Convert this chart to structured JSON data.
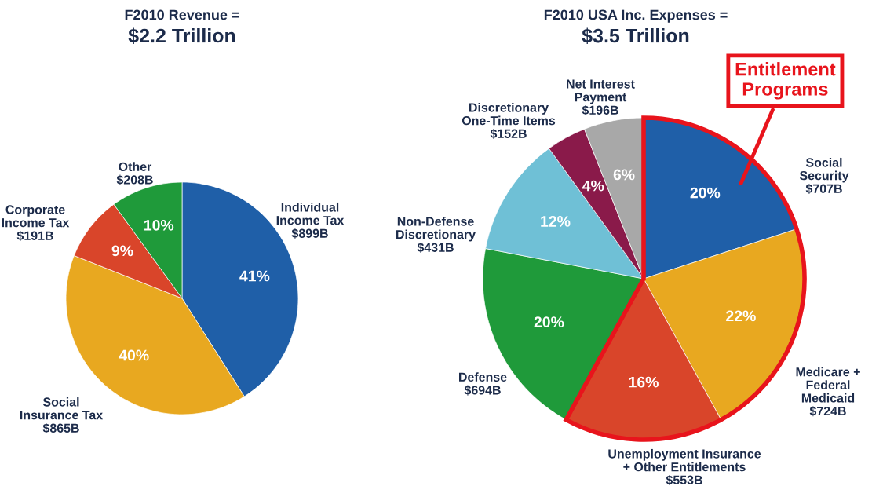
{
  "chart_data": [
    {
      "type": "pie",
      "title": "F2010 Revenue =",
      "subtitle": "$2.2 Trillion",
      "categories": [
        "Individual\nIncome Tax\n$899B",
        "Social\nInsurance Tax\n$865B",
        "Corporate\nIncome Tax\n$191B",
        "Other\n$208B"
      ],
      "values": [
        41,
        40,
        9,
        10
      ],
      "value_labels": [
        "41%",
        "40%",
        "9%",
        "10%"
      ],
      "colors": [
        "#1f5fa8",
        "#e8a820",
        "#d9452a",
        "#1f9a3a"
      ]
    },
    {
      "type": "pie",
      "title": "F2010 USA Inc. Expenses =",
      "subtitle": "$3.5 Trillion",
      "categories": [
        "Social\nSecurity\n$707B",
        "Medicare +\nFederal\nMedicaid\n$724B",
        "Unemployment Insurance\n+ Other Entitlements\n$553B",
        "Defense\n$694B",
        "Non-Defense\nDiscretionary\n$431B",
        "Discretionary\nOne-Time Items\n$152B",
        "Net Interest\nPayment\n$196B"
      ],
      "values": [
        20,
        22,
        16,
        20,
        12,
        4,
        6
      ],
      "value_labels": [
        "20%",
        "22%",
        "16%",
        "20%",
        "12%",
        "4%",
        "6%"
      ],
      "colors": [
        "#1f5fa8",
        "#e8a820",
        "#d9452a",
        "#1f9a3a",
        "#6fc0d6",
        "#8a1a4a",
        "#a8a8a8"
      ],
      "annotations": [
        "Entitlement\nPrograms"
      ]
    }
  ]
}
